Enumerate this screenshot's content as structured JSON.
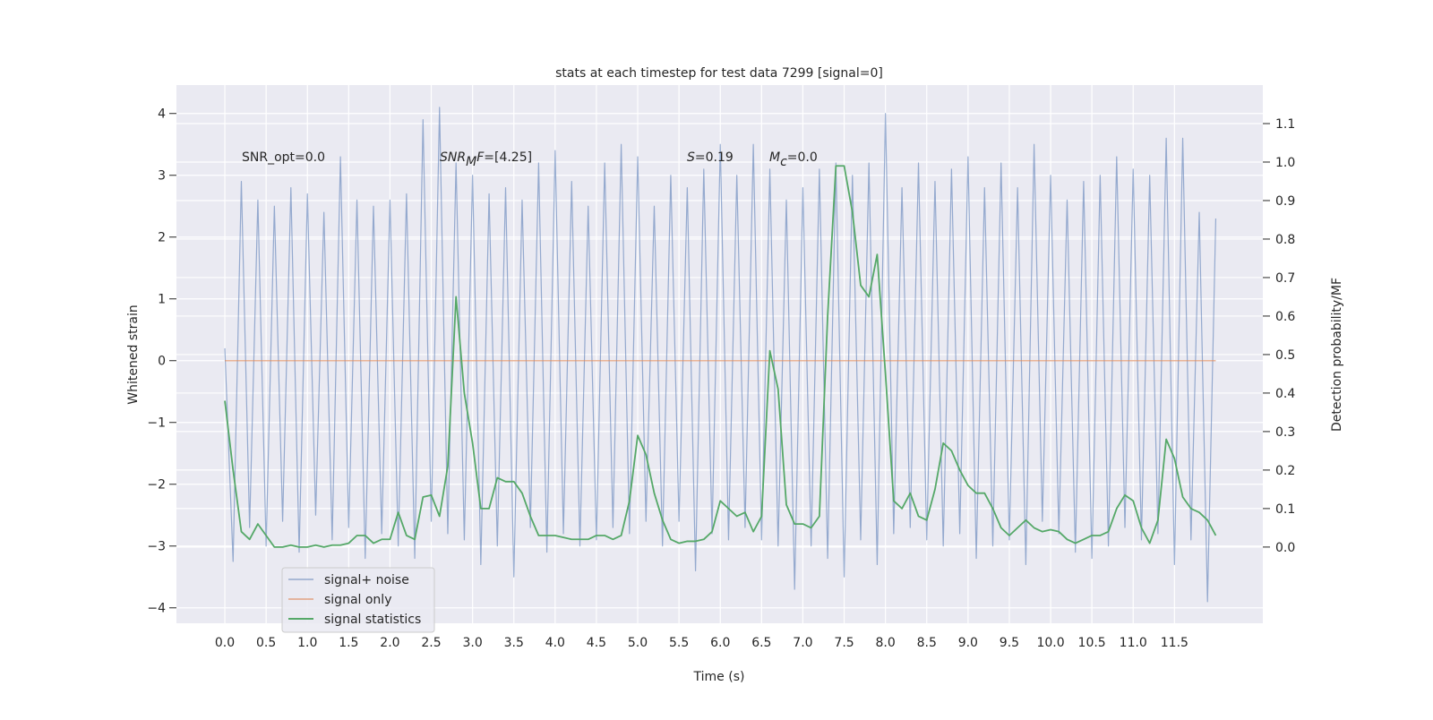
{
  "chart_data": {
    "type": "line",
    "title": "stats at each timestep for test data 7299 [signal=0]",
    "xlabel": "Time (s)",
    "ylabel": "Whitened strain",
    "y2label": "Detection probability/MF",
    "xlim": [
      -0.586,
      12.57
    ],
    "ylim": [
      -4.25,
      4.46
    ],
    "y2lim": [
      -0.198,
      1.2
    ],
    "xticks": [
      {
        "value": 0,
        "label": "0.0"
      },
      {
        "value": 0.5,
        "label": "0.5"
      },
      {
        "value": 1,
        "label": "1.0"
      },
      {
        "value": 1.5,
        "label": "1.5"
      },
      {
        "value": 2,
        "label": "2.0"
      },
      {
        "value": 2.5,
        "label": "2.5"
      },
      {
        "value": 3,
        "label": "3.0"
      },
      {
        "value": 3.5,
        "label": "3.5"
      },
      {
        "value": 4,
        "label": "4.0"
      },
      {
        "value": 4.5,
        "label": "4.5"
      },
      {
        "value": 5,
        "label": "5.0"
      },
      {
        "value": 5.5,
        "label": "5.5"
      },
      {
        "value": 6,
        "label": "6.0"
      },
      {
        "value": 6.5,
        "label": "6.5"
      },
      {
        "value": 7,
        "label": "7.0"
      },
      {
        "value": 7.5,
        "label": "7.5"
      },
      {
        "value": 8,
        "label": "8.0"
      },
      {
        "value": 8.5,
        "label": "8.5"
      },
      {
        "value": 9,
        "label": "9.0"
      },
      {
        "value": 9.5,
        "label": "9.5"
      },
      {
        "value": 10,
        "label": "10.0"
      },
      {
        "value": 10.5,
        "label": "10.5"
      },
      {
        "value": 11,
        "label": "11.0"
      },
      {
        "value": 11.5,
        "label": "11.5"
      }
    ],
    "yticks": [
      {
        "value": -4,
        "label": "−4"
      },
      {
        "value": -3,
        "label": "−3"
      },
      {
        "value": -2,
        "label": "−2"
      },
      {
        "value": -1,
        "label": "−1"
      },
      0,
      1,
      2,
      3,
      4
    ],
    "y2ticks": [
      {
        "value": 0,
        "label": "0.0"
      },
      {
        "value": 0.1,
        "label": "0.1"
      },
      {
        "value": 0.2,
        "label": "0.2"
      },
      {
        "value": 0.3,
        "label": "0.3"
      },
      {
        "value": 0.4,
        "label": "0.4"
      },
      {
        "value": 0.5,
        "label": "0.5"
      },
      {
        "value": 0.6,
        "label": "0.6"
      },
      {
        "value": 0.7,
        "label": "0.7"
      },
      {
        "value": 0.8,
        "label": "0.8"
      },
      {
        "value": 0.9,
        "label": "0.9"
      },
      {
        "value": 1,
        "label": "1.0"
      },
      {
        "value": 1.1,
        "label": "1.1"
      }
    ],
    "grid": true,
    "legend": "lower left",
    "annotations": [
      [
        {
          "t": "SNR_opt=0.0"
        }
      ],
      [
        {
          "t": "SNR",
          "italic": true
        },
        {
          "t": "M",
          "italic": true,
          "sub": true
        },
        {
          "t": "F",
          "italic": true
        },
        {
          "t": "=[4.25]"
        }
      ],
      [
        {
          "t": "S",
          "italic": true
        },
        {
          "t": "=0.19"
        }
      ],
      [
        {
          "t": "M",
          "italic": true
        },
        {
          "t": "c",
          "italic": true,
          "sub": true
        },
        {
          "t": "=0.0"
        }
      ]
    ],
    "x": [
      0,
      0.1,
      0.2,
      0.3,
      0.4,
      0.5,
      0.6,
      0.7,
      0.8,
      0.9,
      1,
      1.1,
      1.2,
      1.3,
      1.4,
      1.5,
      1.6,
      1.7,
      1.8,
      1.9,
      2,
      2.1,
      2.2,
      2.3,
      2.4,
      2.5,
      2.6,
      2.7,
      2.8,
      2.9,
      3,
      3.1,
      3.2,
      3.3,
      3.4,
      3.5,
      3.6,
      3.7,
      3.8,
      3.9,
      4,
      4.1,
      4.2,
      4.3,
      4.4,
      4.5,
      4.6,
      4.7,
      4.8,
      4.9,
      5,
      5.1,
      5.2,
      5.3,
      5.4,
      5.5,
      5.6,
      5.7,
      5.8,
      5.9,
      6,
      6.1,
      6.2,
      6.3,
      6.4,
      6.5,
      6.6,
      6.7,
      6.8,
      6.9,
      7,
      7.1,
      7.2,
      7.3,
      7.4,
      7.5,
      7.6,
      7.7,
      7.8,
      7.9,
      8,
      8.1,
      8.2,
      8.3,
      8.4,
      8.5,
      8.6,
      8.7,
      8.8,
      8.9,
      9,
      9.1,
      9.2,
      9.3,
      9.4,
      9.5,
      9.6,
      9.7,
      9.8,
      9.9,
      10,
      10.1,
      10.2,
      10.3,
      10.4,
      10.5,
      10.6,
      10.7,
      10.8,
      10.9,
      11,
      11.1,
      11.2,
      11.3,
      11.4,
      11.5,
      11.6,
      11.7,
      11.8,
      11.9,
      12
    ],
    "series": [
      {
        "name": "signal+ noise",
        "color": "#4c72b0",
        "values": [
          0.2,
          -3.25,
          2.9,
          -2.7,
          2.6,
          -3.0,
          2.5,
          -2.6,
          2.8,
          -3.1,
          2.7,
          -2.5,
          2.4,
          -2.9,
          3.3,
          -2.7,
          2.6,
          -3.2,
          2.5,
          -2.8,
          2.6,
          -3.0,
          2.7,
          -3.2,
          3.9,
          -2.6,
          4.1,
          -2.8,
          3.2,
          -2.9,
          3.0,
          -3.3,
          2.7,
          -3.0,
          2.8,
          -3.5,
          2.6,
          -2.7,
          3.2,
          -3.1,
          3.4,
          -2.8,
          2.9,
          -3.0,
          2.5,
          -2.9,
          3.2,
          -2.7,
          3.5,
          -2.8,
          3.3,
          -2.6,
          2.5,
          -3.0,
          3.0,
          -2.6,
          2.8,
          -3.4,
          3.1,
          -2.8,
          3.5,
          -2.9,
          3.0,
          -2.7,
          3.5,
          -2.9,
          3.1,
          -3.0,
          2.6,
          -3.7,
          2.8,
          -3.0,
          3.1,
          -3.2,
          3.2,
          -3.5,
          3.0,
          -2.9,
          3.2,
          -3.3,
          4.0,
          -2.8,
          2.8,
          -2.7,
          3.2,
          -2.9,
          2.9,
          -3.0,
          3.1,
          -2.8,
          3.3,
          -3.2,
          2.8,
          -3.0,
          3.2,
          -2.9,
          2.8,
          -3.3,
          3.5,
          -2.6,
          3.0,
          -2.8,
          2.6,
          -3.1,
          2.9,
          -3.2,
          3.0,
          -3.0,
          3.3,
          -2.7,
          3.1,
          -2.9,
          3.0,
          -2.8,
          3.6,
          -3.3,
          3.6,
          -2.9,
          2.4,
          -3.9,
          2.3
        ]
      },
      {
        "name": "signal only",
        "color": "#dd8452",
        "values": [
          0,
          0,
          0,
          0,
          0,
          0,
          0,
          0,
          0,
          0,
          0,
          0,
          0,
          0,
          0,
          0,
          0,
          0,
          0,
          0,
          0,
          0,
          0,
          0,
          0,
          0,
          0,
          0,
          0,
          0,
          0,
          0,
          0,
          0,
          0,
          0,
          0,
          0,
          0,
          0,
          0,
          0,
          0,
          0,
          0,
          0,
          0,
          0,
          0,
          0,
          0,
          0,
          0,
          0,
          0,
          0,
          0,
          0,
          0,
          0,
          0,
          0,
          0,
          0,
          0,
          0,
          0,
          0,
          0,
          0,
          0,
          0,
          0,
          0,
          0,
          0,
          0,
          0,
          0,
          0,
          0,
          0,
          0,
          0,
          0,
          0,
          0,
          0,
          0,
          0,
          0,
          0,
          0,
          0,
          0,
          0,
          0,
          0,
          0,
          0,
          0,
          0,
          0,
          0,
          0,
          0,
          0,
          0,
          0,
          0,
          0,
          0,
          0,
          0,
          0,
          0,
          0,
          0,
          0,
          0,
          0
        ]
      },
      {
        "name": "signal statistics",
        "color": "#55a868",
        "axis": "y2",
        "values": [
          0.38,
          0.2,
          0.04,
          0.02,
          0.06,
          0.03,
          0,
          0,
          0.005,
          0,
          0,
          0.005,
          0,
          0.005,
          0.005,
          0.01,
          0.03,
          0.03,
          0.01,
          0.02,
          0.02,
          0.09,
          0.03,
          0.02,
          0.13,
          0.135,
          0.08,
          0.21,
          0.65,
          0.4,
          0.27,
          0.1,
          0.1,
          0.18,
          0.17,
          0.17,
          0.14,
          0.08,
          0.03,
          0.03,
          0.03,
          0.025,
          0.02,
          0.02,
          0.02,
          0.03,
          0.03,
          0.02,
          0.03,
          0.12,
          0.29,
          0.24,
          0.14,
          0.07,
          0.02,
          0.01,
          0.015,
          0.015,
          0.02,
          0.04,
          0.12,
          0.1,
          0.08,
          0.09,
          0.04,
          0.08,
          0.51,
          0.41,
          0.11,
          0.06,
          0.06,
          0.05,
          0.08,
          0.6,
          0.99,
          0.99,
          0.87,
          0.68,
          0.65,
          0.76,
          0.45,
          0.12,
          0.1,
          0.14,
          0.08,
          0.07,
          0.15,
          0.27,
          0.25,
          0.2,
          0.16,
          0.14,
          0.14,
          0.1,
          0.05,
          0.03,
          0.05,
          0.07,
          0.05,
          0.04,
          0.045,
          0.04,
          0.02,
          0.01,
          0.02,
          0.03,
          0.03,
          0.04,
          0.1,
          0.135,
          0.12,
          0.05,
          0.01,
          0.07,
          0.28,
          0.23,
          0.13,
          0.1,
          0.09,
          0.07,
          0.03
        ]
      }
    ]
  }
}
